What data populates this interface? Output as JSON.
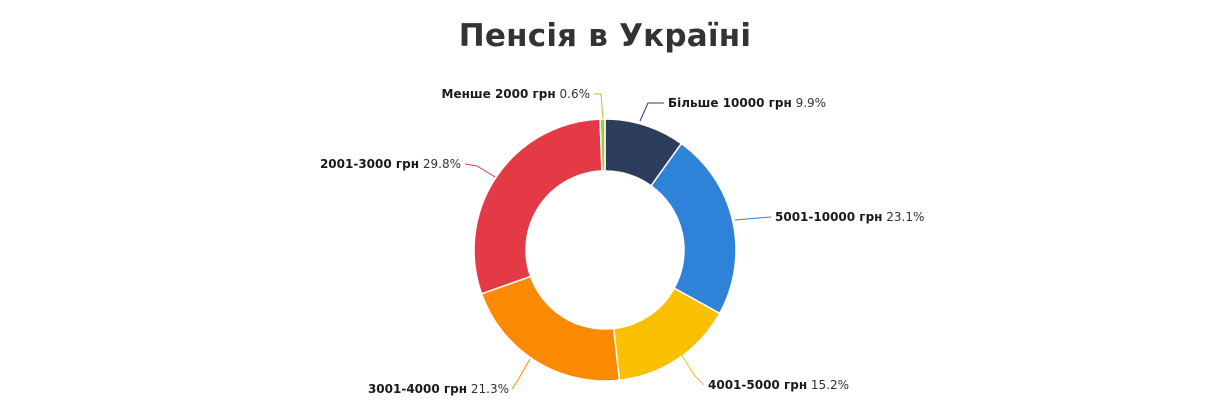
{
  "chart_data": {
    "type": "pie",
    "style": "donut",
    "title": "Пенсія в Україні",
    "slices": [
      {
        "label": "Більше 10000 грн",
        "value": 9.9,
        "display": "9.9%",
        "color": "#2c3e5c"
      },
      {
        "label": "5001-10000 грн",
        "value": 23.1,
        "display": "23.1%",
        "color": "#2e82d8"
      },
      {
        "label": "4001-5000 грн",
        "value": 15.2,
        "display": "15.2%",
        "color": "#fcc002"
      },
      {
        "label": "3001-4000 грн",
        "value": 21.3,
        "display": "21.3%",
        "color": "#fb8a00"
      },
      {
        "label": "2001-3000 грн",
        "value": 29.8,
        "display": "29.8%",
        "color": "#e33a46"
      },
      {
        "label": "Менше 2000 грн",
        "value": 0.6,
        "display": "0.6%",
        "color": "#a4c83a"
      }
    ],
    "legend": "none",
    "data_labels": "outside with connector lines"
  }
}
